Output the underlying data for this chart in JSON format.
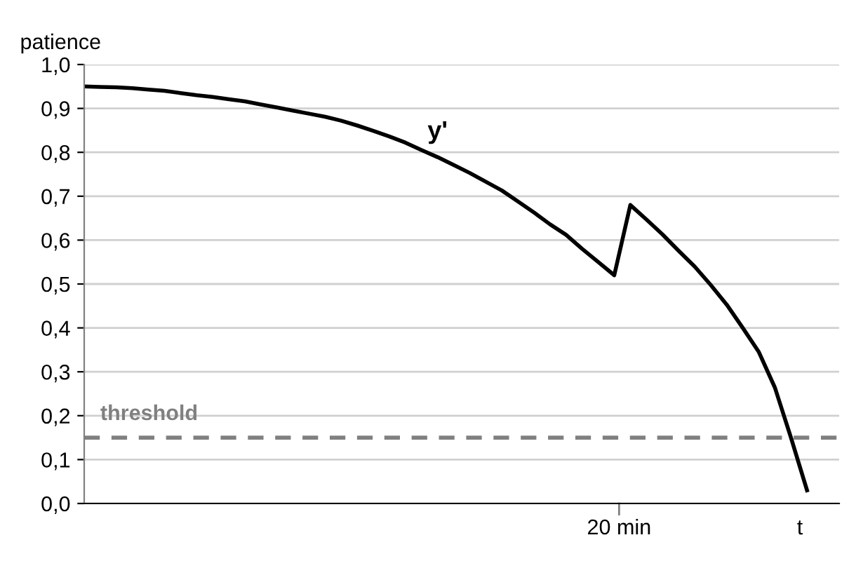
{
  "chart_data": {
    "type": "line",
    "xlabel": "t",
    "ylabel": "patience",
    "categories": [
      null,
      null,
      null,
      null,
      null,
      null,
      null,
      null,
      null,
      null,
      null,
      null,
      null,
      null,
      null,
      null,
      null,
      null,
      null,
      null,
      null,
      null,
      null,
      null,
      null,
      null,
      null,
      null,
      null,
      null,
      null,
      null,
      null,
      null,
      null,
      null,
      null,
      null,
      null,
      null,
      null,
      null,
      null,
      null,
      null,
      null
    ],
    "series": [
      {
        "name": "y'",
        "color": "#000000",
        "values": [
          0.95,
          0.949,
          0.948,
          0.946,
          0.943,
          0.94,
          0.935,
          0.93,
          0.926,
          0.921,
          0.916,
          0.909,
          0.902,
          0.895,
          0.888,
          0.881,
          0.872,
          0.861,
          0.849,
          0.836,
          0.822,
          0.805,
          0.789,
          0.771,
          0.753,
          0.733,
          0.713,
          0.688,
          0.663,
          0.636,
          0.612,
          0.58,
          0.55,
          0.52,
          0.68,
          0.647,
          0.613,
          0.576,
          0.54,
          0.498,
          0.453,
          0.4,
          0.345,
          0.264,
          0.15,
          0.03
        ]
      }
    ],
    "annotations": [
      "20 min"
    ],
    "ylim": [
      0,
      1
    ],
    "yticks": [
      {
        "value": 0,
        "label": "0,0"
      },
      {
        "value": 0.1,
        "label": "0,1"
      },
      {
        "value": 0.2,
        "label": "0,2"
      },
      {
        "value": 0.3,
        "label": "0,3"
      },
      {
        "value": 0.4,
        "label": "0,4"
      },
      {
        "value": 0.5,
        "label": "0,5"
      },
      {
        "value": 0.6,
        "label": "0,6"
      },
      {
        "value": 0.7,
        "label": "0,7"
      },
      {
        "value": 0.8,
        "label": "0,8"
      },
      {
        "value": 0.9,
        "label": "0,9"
      },
      {
        "value": 1,
        "label": "1,0"
      }
    ],
    "ref_lines": [
      {
        "axis": "y",
        "value": 0.15,
        "label": "threshold",
        "color": "#808080",
        "line_style": "dashed"
      }
    ],
    "grid": "y",
    "legend": false,
    "marker": "none",
    "line_style": "solid"
  }
}
